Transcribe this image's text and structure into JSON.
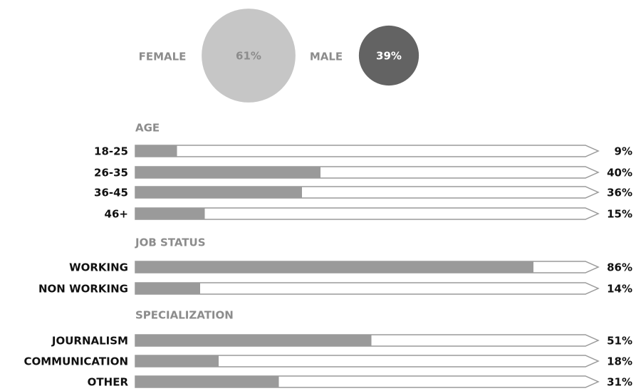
{
  "chart_data": [
    {
      "type": "circle",
      "categories": [
        "FEMALE",
        "MALE"
      ],
      "values": [
        61,
        39
      ],
      "value_labels": [
        "61%",
        "39%"
      ],
      "colors": [
        "#c6c6c6",
        "#636363"
      ],
      "label_colors": [
        "#8c8c8c",
        "#ffffff"
      ]
    },
    {
      "type": "bar",
      "title": "AGE",
      "categories": [
        "18-25",
        "26-35",
        "36-45",
        "46+"
      ],
      "values": [
        9,
        40,
        36,
        15
      ],
      "value_labels": [
        "9%",
        "40%",
        "36%",
        "15%"
      ],
      "xlim": [
        0,
        100
      ],
      "color": "#9a9a9a"
    },
    {
      "type": "bar",
      "title": "JOB STATUS",
      "categories": [
        "WORKING",
        "NON WORKING"
      ],
      "values": [
        86,
        14
      ],
      "value_labels": [
        "86%",
        "14%"
      ],
      "xlim": [
        0,
        100
      ],
      "color": "#9a9a9a"
    },
    {
      "type": "bar",
      "title": "SPECIALIZATION",
      "categories": [
        "JOURNALISM",
        "COMMUNICATION",
        "OTHER"
      ],
      "values": [
        51,
        18,
        31
      ],
      "value_labels": [
        "51%",
        "18%",
        "31%"
      ],
      "xlim": [
        0,
        100
      ],
      "color": "#9a9a9a"
    }
  ]
}
